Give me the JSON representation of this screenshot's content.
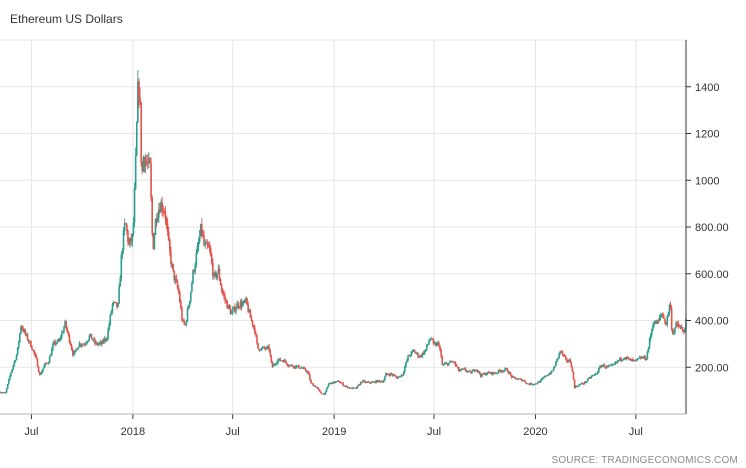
{
  "chart_data": {
    "type": "candlestick",
    "title": "Ethereum US Dollars",
    "source": "SOURCE: TRADINGECONOMICS.COM",
    "xlabel": "",
    "ylabel": "",
    "ylim": [
      0,
      1600
    ],
    "y_ticks": [
      "200.00",
      "400.00",
      "600.00",
      "800.00",
      "1000",
      "1200",
      "1400"
    ],
    "y_tick_values": [
      200,
      400,
      600,
      800,
      1000,
      1200,
      1400
    ],
    "x_ticks": [
      "Jul",
      "2018",
      "Jul",
      "2019",
      "Jul",
      "2020",
      "Jul"
    ],
    "x_tick_dates": [
      "2017-07-01",
      "2018-01-01",
      "2018-07-01",
      "2019-01-01",
      "2019-07-01",
      "2020-01-01",
      "2020-07-01"
    ],
    "x_range": [
      "2017-05-05",
      "2020-09-30"
    ],
    "grid": true,
    "colors": {
      "up": "#2e9d8c",
      "down": "#e0534a",
      "grid": "#e6e6e6",
      "axis": "#333333"
    },
    "price_series": [
      [
        "2017-05-05",
        95
      ],
      [
        "2017-05-15",
        90
      ],
      [
        "2017-05-25",
        180
      ],
      [
        "2017-06-05",
        260
      ],
      [
        "2017-06-12",
        380
      ],
      [
        "2017-06-20",
        340
      ],
      [
        "2017-07-01",
        290
      ],
      [
        "2017-07-10",
        230
      ],
      [
        "2017-07-16",
        165
      ],
      [
        "2017-07-25",
        210
      ],
      [
        "2017-08-01",
        225
      ],
      [
        "2017-08-10",
        300
      ],
      [
        "2017-08-20",
        310
      ],
      [
        "2017-08-31",
        385
      ],
      [
        "2017-09-10",
        300
      ],
      [
        "2017-09-15",
        250
      ],
      [
        "2017-09-25",
        300
      ],
      [
        "2017-10-05",
        300
      ],
      [
        "2017-10-15",
        335
      ],
      [
        "2017-10-25",
        300
      ],
      [
        "2017-11-05",
        300
      ],
      [
        "2017-11-15",
        330
      ],
      [
        "2017-11-25",
        470
      ],
      [
        "2017-12-05",
        460
      ],
      [
        "2017-12-12",
        700
      ],
      [
        "2017-12-18",
        820
      ],
      [
        "2017-12-25",
        720
      ],
      [
        "2018-01-01",
        760
      ],
      [
        "2018-01-05",
        1000
      ],
      [
        "2018-01-10",
        1380
      ],
      [
        "2018-01-13",
        1400
      ],
      [
        "2018-01-17",
        1000
      ],
      [
        "2018-01-20",
        1100
      ],
      [
        "2018-01-25",
        1080
      ],
      [
        "2018-02-01",
        1050
      ],
      [
        "2018-02-06",
        700
      ],
      [
        "2018-02-12",
        850
      ],
      [
        "2018-02-20",
        900
      ],
      [
        "2018-02-28",
        870
      ],
      [
        "2018-03-08",
        700
      ],
      [
        "2018-03-15",
        600
      ],
      [
        "2018-03-25",
        520
      ],
      [
        "2018-04-01",
        390
      ],
      [
        "2018-04-06",
        380
      ],
      [
        "2018-04-15",
        510
      ],
      [
        "2018-04-20",
        600
      ],
      [
        "2018-04-28",
        700
      ],
      [
        "2018-05-05",
        800
      ],
      [
        "2018-05-10",
        720
      ],
      [
        "2018-05-20",
        700
      ],
      [
        "2018-05-28",
        580
      ],
      [
        "2018-06-05",
        610
      ],
      [
        "2018-06-12",
        520
      ],
      [
        "2018-06-22",
        460
      ],
      [
        "2018-06-29",
        430
      ],
      [
        "2018-07-10",
        470
      ],
      [
        "2018-07-20",
        470
      ],
      [
        "2018-07-25",
        480
      ],
      [
        "2018-08-01",
        420
      ],
      [
        "2018-08-10",
        360
      ],
      [
        "2018-08-15",
        280
      ],
      [
        "2018-08-25",
        280
      ],
      [
        "2018-09-05",
        280
      ],
      [
        "2018-09-10",
        200
      ],
      [
        "2018-09-20",
        230
      ],
      [
        "2018-10-01",
        230
      ],
      [
        "2018-10-10",
        210
      ],
      [
        "2018-10-20",
        205
      ],
      [
        "2018-11-01",
        200
      ],
      [
        "2018-11-14",
        180
      ],
      [
        "2018-11-20",
        130
      ],
      [
        "2018-11-30",
        115
      ],
      [
        "2018-12-07",
        90
      ],
      [
        "2018-12-15",
        85
      ],
      [
        "2018-12-22",
        130
      ],
      [
        "2018-12-31",
        135
      ],
      [
        "2019-01-10",
        140
      ],
      [
        "2019-01-20",
        120
      ],
      [
        "2019-01-31",
        110
      ],
      [
        "2019-02-10",
        110
      ],
      [
        "2019-02-20",
        140
      ],
      [
        "2019-02-28",
        135
      ],
      [
        "2019-03-10",
        135
      ],
      [
        "2019-03-20",
        140
      ],
      [
        "2019-03-31",
        140
      ],
      [
        "2019-04-05",
        170
      ],
      [
        "2019-04-15",
        170
      ],
      [
        "2019-04-25",
        155
      ],
      [
        "2019-05-05",
        170
      ],
      [
        "2019-05-15",
        245
      ],
      [
        "2019-05-25",
        270
      ],
      [
        "2019-06-05",
        245
      ],
      [
        "2019-06-15",
        270
      ],
      [
        "2019-06-25",
        330
      ],
      [
        "2019-06-30",
        295
      ],
      [
        "2019-07-10",
        300
      ],
      [
        "2019-07-16",
        210
      ],
      [
        "2019-07-25",
        215
      ],
      [
        "2019-08-05",
        225
      ],
      [
        "2019-08-15",
        185
      ],
      [
        "2019-08-25",
        190
      ],
      [
        "2019-09-05",
        175
      ],
      [
        "2019-09-15",
        195
      ],
      [
        "2019-09-24",
        165
      ],
      [
        "2019-10-05",
        175
      ],
      [
        "2019-10-20",
        175
      ],
      [
        "2019-10-28",
        185
      ],
      [
        "2019-11-10",
        190
      ],
      [
        "2019-11-20",
        155
      ],
      [
        "2019-11-30",
        150
      ],
      [
        "2019-12-10",
        145
      ],
      [
        "2019-12-18",
        128
      ],
      [
        "2019-12-31",
        130
      ],
      [
        "2020-01-10",
        140
      ],
      [
        "2020-01-20",
        165
      ],
      [
        "2020-01-31",
        180
      ],
      [
        "2020-02-08",
        225
      ],
      [
        "2020-02-15",
        270
      ],
      [
        "2020-02-25",
        230
      ],
      [
        "2020-03-05",
        225
      ],
      [
        "2020-03-12",
        115
      ],
      [
        "2020-03-20",
        125
      ],
      [
        "2020-03-31",
        135
      ],
      [
        "2020-04-10",
        158
      ],
      [
        "2020-04-20",
        172
      ],
      [
        "2020-04-30",
        210
      ],
      [
        "2020-05-10",
        200
      ],
      [
        "2020-05-20",
        205
      ],
      [
        "2020-05-31",
        230
      ],
      [
        "2020-06-10",
        245
      ],
      [
        "2020-06-20",
        230
      ],
      [
        "2020-06-30",
        225
      ],
      [
        "2020-07-10",
        240
      ],
      [
        "2020-07-20",
        240
      ],
      [
        "2020-07-25",
        300
      ],
      [
        "2020-08-01",
        390
      ],
      [
        "2020-08-10",
        390
      ],
      [
        "2020-08-17",
        430
      ],
      [
        "2020-08-25",
        385
      ],
      [
        "2020-09-01",
        480
      ],
      [
        "2020-09-05",
        340
      ],
      [
        "2020-09-12",
        380
      ],
      [
        "2020-09-20",
        370
      ],
      [
        "2020-09-25",
        345
      ],
      [
        "2020-09-30",
        395
      ]
    ]
  }
}
